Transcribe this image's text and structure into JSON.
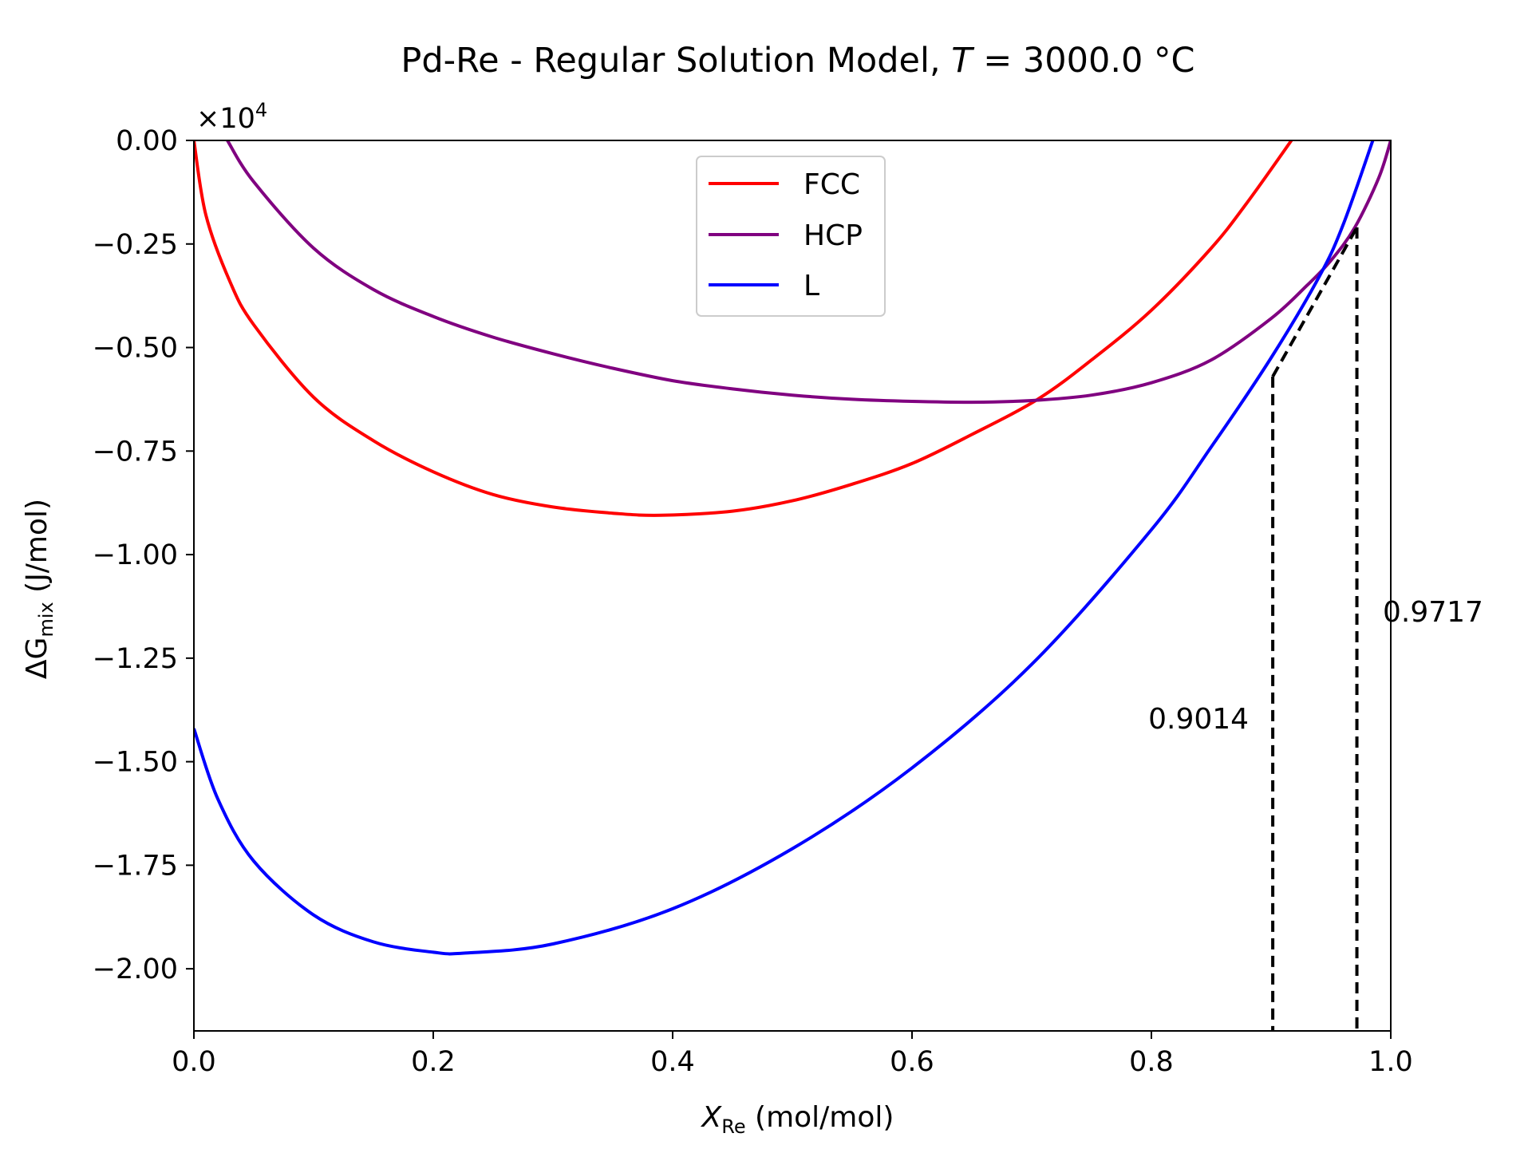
{
  "chart_data": {
    "type": "line",
    "title_prefix": "Pd-Re - Regular Solution Model, ",
    "title_var": "T",
    "title_suffix": " = 3000.0 °C",
    "xlabel_var": "X",
    "xlabel_sub": "Re",
    "xlabel_unit": " (mol/mol)",
    "ylabel_prefix": "ΔG",
    "ylabel_sub": "mix",
    "ylabel_unit": " (J/mol)",
    "y_scale_prefix": "×10",
    "y_scale_exp": "4",
    "xlim": [
      0.0,
      1.0
    ],
    "ylim": [
      -21500,
      0
    ],
    "x_ticks": [
      0.0,
      0.2,
      0.4,
      0.6,
      0.8,
      1.0
    ],
    "x_tick_labels": [
      "0.0",
      "0.2",
      "0.4",
      "0.6",
      "0.8",
      "1.0"
    ],
    "y_ticks": [
      0,
      -2500,
      -5000,
      -7500,
      -10000,
      -12500,
      -15000,
      -17500,
      -20000
    ],
    "y_tick_labels": [
      "0.00",
      "−0.25",
      "−0.50",
      "−0.75",
      "−1.00",
      "−1.25",
      "−1.50",
      "−1.75",
      "−2.00"
    ],
    "grid": false,
    "legend_position": "upper-center",
    "series": [
      {
        "name": "FCC",
        "color": "#ff0000",
        "x": [
          0.0,
          0.01,
          0.03,
          0.05,
          0.1,
          0.15,
          0.2,
          0.25,
          0.3,
          0.35,
          0.39,
          0.45,
          0.5,
          0.55,
          0.6,
          0.65,
          0.705,
          0.75,
          0.8,
          0.85,
          0.88,
          0.917
        ],
        "y": [
          0,
          -1800,
          -3400,
          -4450,
          -6200,
          -7250,
          -8000,
          -8550,
          -8850,
          -9000,
          -9050,
          -8950,
          -8700,
          -8300,
          -7800,
          -7100,
          -6250,
          -5300,
          -4100,
          -2600,
          -1500,
          0
        ]
      },
      {
        "name": "HCP",
        "color": "#800080",
        "x": [
          0.028,
          0.05,
          0.1,
          0.15,
          0.2,
          0.25,
          0.3,
          0.35,
          0.4,
          0.45,
          0.5,
          0.55,
          0.6,
          0.65,
          0.7,
          0.75,
          0.8,
          0.85,
          0.9,
          0.93,
          0.95,
          0.97,
          0.99,
          1.0
        ],
        "y": [
          0,
          -1000,
          -2600,
          -3600,
          -4250,
          -4750,
          -5150,
          -5500,
          -5800,
          -6000,
          -6150,
          -6250,
          -6300,
          -6320,
          -6280,
          -6150,
          -5850,
          -5300,
          -4300,
          -3500,
          -2900,
          -2100,
          -900,
          0
        ]
      },
      {
        "name": "L",
        "color": "#0000ff",
        "x": [
          0.0,
          0.02,
          0.05,
          0.1,
          0.15,
          0.2,
          0.227,
          0.3,
          0.4,
          0.5,
          0.6,
          0.7,
          0.8,
          0.85,
          0.9,
          0.94,
          0.96,
          0.985
        ],
        "y": [
          -14200,
          -15900,
          -17400,
          -18700,
          -19350,
          -19600,
          -19620,
          -19400,
          -18550,
          -17100,
          -15150,
          -12650,
          -9400,
          -7400,
          -5250,
          -3300,
          -2050,
          0
        ]
      }
    ],
    "common_tangent": {
      "color": "#000000",
      "x": [
        0.9014,
        0.9717
      ],
      "y": [
        -5700,
        -2100
      ]
    },
    "annotations": [
      {
        "text": "0.9014",
        "x": 0.9014
      },
      {
        "text": "0.9717",
        "x": 0.9717
      }
    ]
  }
}
